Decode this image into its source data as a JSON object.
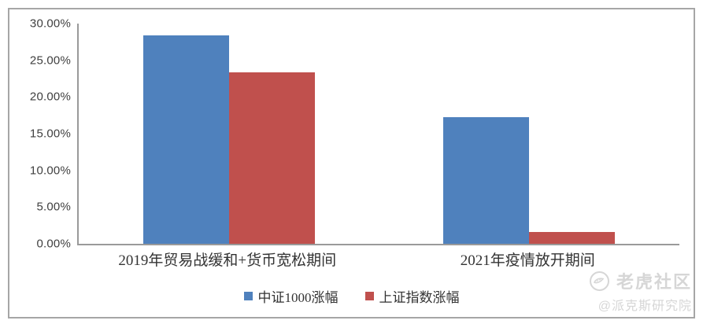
{
  "chart_data": {
    "type": "bar",
    "categories": [
      "2019年贸易战缓和+货币宽松期间",
      "2021年疫情放开期间"
    ],
    "series": [
      {
        "name": "中证1000涨幅",
        "color": "#4F81BD",
        "values": [
          28.4,
          17.2
        ]
      },
      {
        "name": "上证指数涨幅",
        "color": "#C0504D",
        "values": [
          23.4,
          1.6
        ]
      }
    ],
    "title": "",
    "xlabel": "",
    "ylabel": "",
    "ylim": [
      0,
      30
    ],
    "ytick_step": 5,
    "yticks": [
      "30.00%",
      "25.00%",
      "20.00%",
      "15.00%",
      "10.00%",
      "5.00%",
      "0.00%"
    ],
    "grid": false,
    "legend_position": "bottom"
  },
  "watermark": {
    "brand": "老虎社区",
    "handle": "@派克斯研究院",
    "logo_icon": "tiger-logo-icon"
  },
  "colors": {
    "series1": "#4F81BD",
    "series2": "#C0504D",
    "axis": "#9a9a9a",
    "frame_border": "#a6a6a6",
    "tick_text": "#3f3f3f",
    "label_text": "#333333",
    "watermark": "#d6d6d6"
  }
}
